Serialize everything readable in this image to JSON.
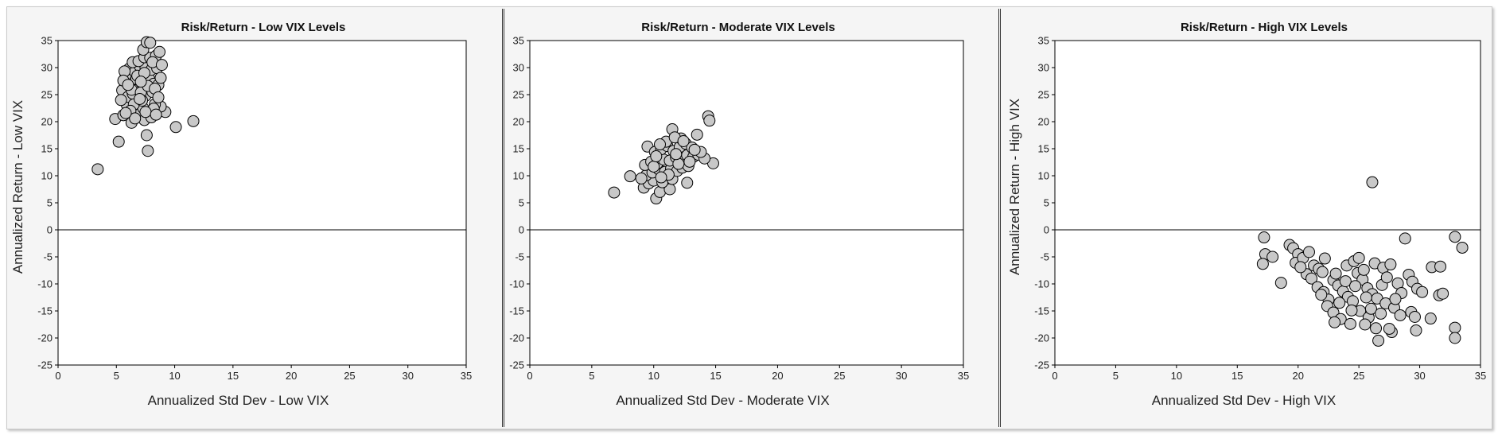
{
  "chart_data": [
    {
      "type": "scatter",
      "title": "Risk/Return - Low VIX Levels",
      "xlabel": "Annualized Std Dev - Low VIX",
      "ylabel": "Annualized Return - Low VIX",
      "xlim": [
        0,
        35
      ],
      "ylim": [
        -25,
        35
      ],
      "xticks": [
        0,
        5,
        10,
        15,
        20,
        25,
        30,
        35
      ],
      "yticks": [
        -25,
        -20,
        -15,
        -10,
        -5,
        0,
        5,
        10,
        15,
        20,
        25,
        30,
        35
      ],
      "grid": false,
      "points": [
        [
          3.4,
          11.2
        ],
        [
          5.2,
          16.3
        ],
        [
          4.9,
          20.5
        ],
        [
          7.7,
          14.6
        ],
        [
          7.6,
          17.5
        ],
        [
          10.1,
          19
        ],
        [
          11.6,
          20.1
        ],
        [
          9.2,
          21.8
        ],
        [
          8.8,
          22.8
        ],
        [
          8.3,
          23.2
        ],
        [
          5.6,
          21.2
        ],
        [
          6.0,
          22.3
        ],
        [
          6.5,
          21.0
        ],
        [
          7.0,
          21.4
        ],
        [
          7.4,
          20.3
        ],
        [
          8.0,
          20.8
        ],
        [
          6.3,
          19.8
        ],
        [
          5.9,
          23.1
        ],
        [
          6.8,
          23.6
        ],
        [
          7.3,
          22.5
        ],
        [
          5.5,
          25.8
        ],
        [
          6.0,
          24.6
        ],
        [
          6.4,
          25.2
        ],
        [
          6.9,
          26.0
        ],
        [
          7.5,
          24.8
        ],
        [
          8.1,
          25.5
        ],
        [
          6.2,
          27.3
        ],
        [
          6.7,
          27.9
        ],
        [
          7.2,
          27.1
        ],
        [
          7.8,
          28.0
        ],
        [
          8.2,
          27.0
        ],
        [
          8.6,
          26.8
        ],
        [
          5.8,
          28.6
        ],
        [
          6.1,
          29.8
        ],
        [
          6.6,
          29.2
        ],
        [
          7.0,
          30.3
        ],
        [
          7.5,
          30.0
        ],
        [
          8.0,
          29.6
        ],
        [
          8.5,
          29.9
        ],
        [
          6.4,
          31.0
        ],
        [
          6.9,
          31.2
        ],
        [
          7.4,
          31.9
        ],
        [
          7.9,
          31.8
        ],
        [
          8.4,
          32.2
        ],
        [
          8.7,
          32.9
        ],
        [
          7.3,
          33.3
        ],
        [
          7.6,
          34.7
        ],
        [
          7.9,
          34.6
        ],
        [
          5.7,
          29.3
        ],
        [
          5.6,
          27.6
        ],
        [
          6.3,
          25.9
        ],
        [
          7.1,
          25.4
        ],
        [
          7.7,
          26.6
        ],
        [
          8.3,
          26.1
        ],
        [
          8.8,
          28.1
        ],
        [
          6.5,
          23.2
        ],
        [
          7.2,
          23.9
        ],
        [
          8.2,
          22.4
        ],
        [
          7.0,
          24.2
        ],
        [
          6.0,
          26.8
        ],
        [
          6.8,
          28.5
        ],
        [
          7.4,
          29.0
        ],
        [
          8.1,
          31.0
        ],
        [
          8.9,
          30.5
        ],
        [
          6.2,
          22.0
        ],
        [
          7.5,
          21.8
        ],
        [
          8.4,
          21.3
        ],
        [
          5.4,
          24.0
        ],
        [
          8.6,
          24.5
        ],
        [
          7.1,
          27.4
        ],
        [
          6.6,
          20.6
        ],
        [
          5.8,
          21.6
        ]
      ]
    },
    {
      "type": "scatter",
      "title": "Risk/Return - Moderate VIX Levels",
      "xlabel": "Annualized Std Dev - Moderate VIX",
      "ylabel": "Annualized Return - Moderate VIX",
      "xlim": [
        0,
        35
      ],
      "ylim": [
        -25,
        35
      ],
      "xticks": [
        0,
        5,
        10,
        15,
        20,
        25,
        30,
        35
      ],
      "yticks": [
        -25,
        -20,
        -15,
        -10,
        -5,
        0,
        5,
        10,
        15,
        20,
        25,
        30,
        35
      ],
      "grid": false,
      "points": [
        [
          6.8,
          6.9
        ],
        [
          8.1,
          9.9
        ],
        [
          10.2,
          5.8
        ],
        [
          10.5,
          7.0
        ],
        [
          11.3,
          7.5
        ],
        [
          9.2,
          7.8
        ],
        [
          9.6,
          8.6
        ],
        [
          10.0,
          9.1
        ],
        [
          10.7,
          8.8
        ],
        [
          11.5,
          9.4
        ],
        [
          12.7,
          8.7
        ],
        [
          9.4,
          10.1
        ],
        [
          9.9,
          10.6
        ],
        [
          10.4,
          11.2
        ],
        [
          10.9,
          10.7
        ],
        [
          11.4,
          11.3
        ],
        [
          11.9,
          10.9
        ],
        [
          12.3,
          11.5
        ],
        [
          12.8,
          11.8
        ],
        [
          9.3,
          12.0
        ],
        [
          9.8,
          12.6
        ],
        [
          10.3,
          12.3
        ],
        [
          10.8,
          13.0
        ],
        [
          11.3,
          12.8
        ],
        [
          11.8,
          13.4
        ],
        [
          12.2,
          13.1
        ],
        [
          12.7,
          13.8
        ],
        [
          13.2,
          13.5
        ],
        [
          13.6,
          13.9
        ],
        [
          9.5,
          15.4
        ],
        [
          10.1,
          14.4
        ],
        [
          10.6,
          14.9
        ],
        [
          11.1,
          15.5
        ],
        [
          11.6,
          14.6
        ],
        [
          12.1,
          15.3
        ],
        [
          12.6,
          15.9
        ],
        [
          13.1,
          15.2
        ],
        [
          13.5,
          17.6
        ],
        [
          11.5,
          18.6
        ],
        [
          12.2,
          16.9
        ],
        [
          14.4,
          21.0
        ],
        [
          14.5,
          20.2
        ],
        [
          14.8,
          12.3
        ],
        [
          14.1,
          13.2
        ],
        [
          13.8,
          14.4
        ],
        [
          11.0,
          16.3
        ],
        [
          10.5,
          15.8
        ],
        [
          11.7,
          17.1
        ],
        [
          12.4,
          16.4
        ],
        [
          10.0,
          11.7
        ],
        [
          11.2,
          10.2
        ],
        [
          12.0,
          12.2
        ],
        [
          10.6,
          9.7
        ],
        [
          9.0,
          9.5
        ],
        [
          11.8,
          14.0
        ],
        [
          12.9,
          12.6
        ],
        [
          13.3,
          14.8
        ],
        [
          10.2,
          13.6
        ]
      ]
    },
    {
      "type": "scatter",
      "title": "Risk/Return - High VIX Levels",
      "xlabel": "Annualized Std Dev - High VIX",
      "ylabel": "Annualized Return - High VIX",
      "xlim": [
        0,
        35
      ],
      "ylim": [
        -25,
        35
      ],
      "xticks": [
        0,
        5,
        10,
        15,
        20,
        25,
        30,
        35
      ],
      "yticks": [
        -25,
        -20,
        -15,
        -10,
        -5,
        0,
        5,
        10,
        15,
        20,
        25,
        30,
        35
      ],
      "grid": false,
      "points": [
        [
          26.1,
          8.8
        ],
        [
          17.2,
          -1.4
        ],
        [
          17.3,
          -4.5
        ],
        [
          17.1,
          -6.3
        ],
        [
          17.9,
          -5.0
        ],
        [
          18.6,
          -9.8
        ],
        [
          19.3,
          -2.8
        ],
        [
          19.6,
          -3.4
        ],
        [
          20.0,
          -4.5
        ],
        [
          19.8,
          -6.1
        ],
        [
          20.4,
          -5.2
        ],
        [
          20.9,
          -4.1
        ],
        [
          21.3,
          -6.6
        ],
        [
          21.7,
          -7.2
        ],
        [
          22.2,
          -5.3
        ],
        [
          20.7,
          -8.2
        ],
        [
          21.1,
          -9.0
        ],
        [
          21.6,
          -10.6
        ],
        [
          22.1,
          -11.5
        ],
        [
          22.5,
          -12.9
        ],
        [
          22.9,
          -9.3
        ],
        [
          23.3,
          -10.3
        ],
        [
          23.7,
          -11.4
        ],
        [
          24.1,
          -12.4
        ],
        [
          24.5,
          -13.2
        ],
        [
          24.9,
          -8.0
        ],
        [
          25.3,
          -9.2
        ],
        [
          25.7,
          -10.8
        ],
        [
          26.1,
          -11.9
        ],
        [
          26.5,
          -12.7
        ],
        [
          22.4,
          -14.1
        ],
        [
          22.9,
          -15.3
        ],
        [
          23.5,
          -16.5
        ],
        [
          24.3,
          -17.4
        ],
        [
          25.1,
          -15.0
        ],
        [
          25.8,
          -16.2
        ],
        [
          26.4,
          -18.2
        ],
        [
          26.6,
          -20.5
        ],
        [
          27.7,
          -18.9
        ],
        [
          27.5,
          -18.3
        ],
        [
          28.8,
          -1.6
        ],
        [
          29.1,
          -8.3
        ],
        [
          29.4,
          -9.6
        ],
        [
          29.8,
          -10.9
        ],
        [
          30.2,
          -11.5
        ],
        [
          29.3,
          -15.2
        ],
        [
          29.6,
          -16.1
        ],
        [
          29.7,
          -18.6
        ],
        [
          30.9,
          -16.4
        ],
        [
          31.0,
          -6.9
        ],
        [
          31.6,
          -12.1
        ],
        [
          31.9,
          -11.8
        ],
        [
          31.7,
          -6.8
        ],
        [
          32.9,
          -1.3
        ],
        [
          33.5,
          -3.3
        ],
        [
          32.9,
          -18.1
        ],
        [
          32.9,
          -20.0
        ],
        [
          24.0,
          -6.6
        ],
        [
          24.6,
          -5.8
        ],
        [
          25.0,
          -5.2
        ],
        [
          25.4,
          -7.4
        ],
        [
          26.3,
          -6.2
        ],
        [
          27.0,
          -7.0
        ],
        [
          27.6,
          -6.4
        ],
        [
          28.2,
          -9.9
        ],
        [
          28.5,
          -11.7
        ],
        [
          27.2,
          -13.6
        ],
        [
          27.9,
          -14.4
        ],
        [
          28.4,
          -15.8
        ],
        [
          23.1,
          -8.1
        ],
        [
          23.9,
          -9.5
        ],
        [
          24.7,
          -10.4
        ],
        [
          25.6,
          -12.5
        ],
        [
          26.9,
          -10.2
        ],
        [
          23.4,
          -13.5
        ],
        [
          22.0,
          -7.8
        ],
        [
          20.2,
          -6.9
        ],
        [
          21.9,
          -12.0
        ],
        [
          26.0,
          -14.6
        ],
        [
          27.3,
          -8.8
        ],
        [
          24.4,
          -14.9
        ],
        [
          25.5,
          -17.5
        ],
        [
          23.0,
          -17.1
        ],
        [
          28.0,
          -12.8
        ],
        [
          26.8,
          -15.5
        ]
      ]
    }
  ]
}
